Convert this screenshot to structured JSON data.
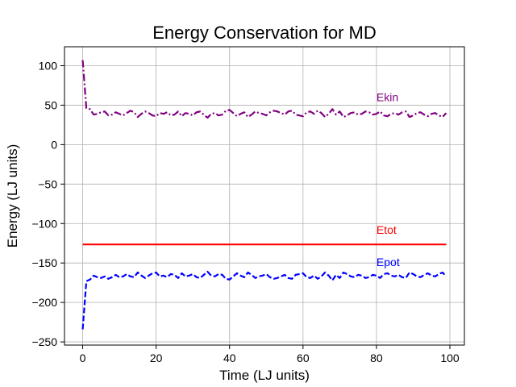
{
  "chart_data": {
    "type": "line",
    "title": "Energy Conservation for MD",
    "xlabel": "Time (LJ units)",
    "ylabel": "Energy (LJ units)",
    "xlim": [
      -4.95,
      103.95
    ],
    "ylim": [
      -254,
      124
    ],
    "xticks": [
      0,
      20,
      40,
      60,
      80,
      100
    ],
    "yticks": [
      -250,
      -200,
      -150,
      -100,
      -50,
      0,
      50,
      100
    ],
    "xtick_labels": [
      "0",
      "20",
      "40",
      "60",
      "80",
      "100"
    ],
    "ytick_labels": [
      "−250",
      "−200",
      "−150",
      "−100",
      "−50",
      "0",
      "50",
      "100"
    ],
    "grid": true,
    "legend": "none",
    "series": [
      {
        "label": "Ekin",
        "color": "#800080",
        "dash": "dashdot",
        "x": [
          0,
          1,
          2,
          3,
          4,
          5,
          6,
          7,
          8,
          9,
          10,
          11,
          12,
          13,
          14,
          15,
          16,
          17,
          18,
          19,
          20,
          21,
          22,
          23,
          24,
          25,
          26,
          27,
          28,
          29,
          30,
          31,
          32,
          33,
          34,
          35,
          36,
          37,
          38,
          39,
          40,
          41,
          42,
          43,
          44,
          45,
          46,
          47,
          48,
          49,
          50,
          51,
          52,
          53,
          54,
          55,
          56,
          57,
          58,
          59,
          60,
          61,
          62,
          63,
          64,
          65,
          66,
          67,
          68,
          69,
          70,
          71,
          72,
          73,
          74,
          75,
          76,
          77,
          78,
          79,
          80,
          81,
          82,
          83,
          84,
          85,
          86,
          87,
          88,
          89,
          90,
          91,
          92,
          93,
          94,
          95,
          96,
          97,
          98,
          99
        ],
        "y": [
          107,
          46,
          45,
          38,
          39,
          41,
          42,
          37,
          38,
          41,
          39,
          37,
          40,
          43,
          41,
          35,
          39,
          42,
          40,
          37,
          36,
          40,
          39,
          41,
          37,
          38,
          42,
          36,
          40,
          39,
          37,
          41,
          42,
          38,
          34,
          39,
          40,
          37,
          38,
          43,
          44,
          40,
          36,
          39,
          41,
          35,
          38,
          42,
          40,
          39,
          37,
          41,
          43,
          42,
          40,
          38,
          42,
          43,
          38,
          37,
          36,
          41,
          42,
          39,
          43,
          40,
          35,
          39,
          45,
          38,
          42,
          35,
          37,
          40,
          41,
          38,
          39,
          42,
          41,
          38,
          39,
          42,
          37,
          36,
          39,
          40,
          38,
          41,
          42,
          35,
          37,
          40,
          41,
          38,
          36,
          39,
          40,
          37,
          35,
          40
        ]
      },
      {
        "label": "Etot",
        "color": "#ff0000",
        "dash": "solid",
        "x": [
          0,
          99
        ],
        "y": [
          -126.5,
          -126.5
        ]
      },
      {
        "label": "Epot",
        "color": "#0000ff",
        "dash": "dashed",
        "x": [
          0,
          1,
          2,
          3,
          4,
          5,
          6,
          7,
          8,
          9,
          10,
          11,
          12,
          13,
          14,
          15,
          16,
          17,
          18,
          19,
          20,
          21,
          22,
          23,
          24,
          25,
          26,
          27,
          28,
          29,
          30,
          31,
          32,
          33,
          34,
          35,
          36,
          37,
          38,
          39,
          40,
          41,
          42,
          43,
          44,
          45,
          46,
          47,
          48,
          49,
          50,
          51,
          52,
          53,
          54,
          55,
          56,
          57,
          58,
          59,
          60,
          61,
          62,
          63,
          64,
          65,
          66,
          67,
          68,
          69,
          70,
          71,
          72,
          73,
          74,
          75,
          76,
          77,
          78,
          79,
          80,
          81,
          82,
          83,
          84,
          85,
          86,
          87,
          88,
          89,
          90,
          91,
          92,
          93,
          94,
          95,
          96,
          97,
          98,
          99
        ],
        "y": [
          -234,
          -173,
          -171,
          -166,
          -168,
          -169,
          -167,
          -170,
          -168,
          -165,
          -168,
          -167,
          -164,
          -167,
          -168,
          -162,
          -166,
          -169,
          -166,
          -163,
          -162,
          -167,
          -166,
          -168,
          -164,
          -165,
          -169,
          -163,
          -167,
          -166,
          -164,
          -168,
          -169,
          -165,
          -161,
          -166,
          -167,
          -164,
          -165,
          -170,
          -171,
          -167,
          -163,
          -166,
          -168,
          -162,
          -165,
          -169,
          -167,
          -166,
          -164,
          -168,
          -170,
          -169,
          -167,
          -165,
          -169,
          -170,
          -165,
          -164,
          -163,
          -168,
          -169,
          -166,
          -170,
          -167,
          -162,
          -166,
          -172,
          -165,
          -169,
          -162,
          -164,
          -167,
          -168,
          -165,
          -166,
          -169,
          -168,
          -165,
          -166,
          -169,
          -164,
          -163,
          -166,
          -167,
          -165,
          -168,
          -169,
          -162,
          -164,
          -167,
          -168,
          -165,
          -163,
          -166,
          -167,
          -164,
          -162,
          -167
        ]
      }
    ],
    "annotations": [
      {
        "text": "Ekin",
        "x": 80,
        "y": 55,
        "color": "#800080"
      },
      {
        "text": "Etot",
        "x": 80,
        "y": -113,
        "color": "#ff0000"
      },
      {
        "text": "Epot",
        "x": 80,
        "y": -154,
        "color": "#0000ff"
      }
    ]
  }
}
